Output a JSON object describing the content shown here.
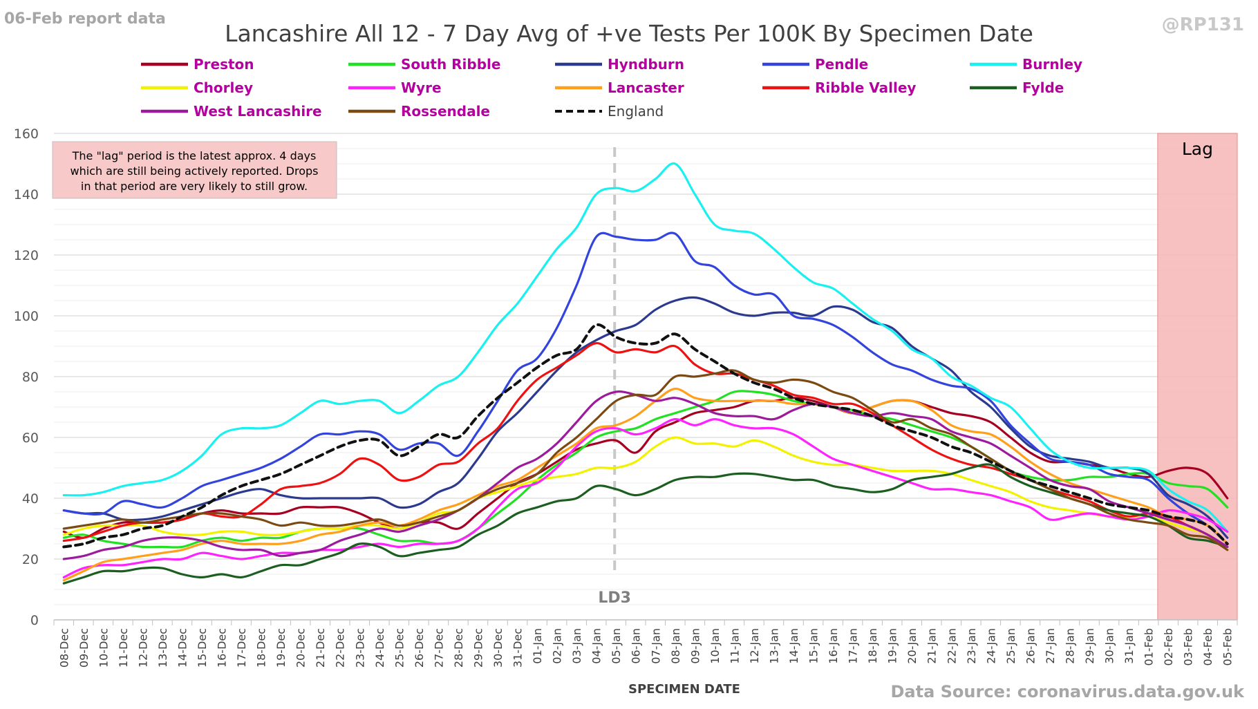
{
  "header": {
    "report_label": "06-Feb report data",
    "handle": "@RP131",
    "title": "Lancashire All 12 - 7 Day Avg of +ve Tests Per 100K By Specimen Date",
    "source": "Data Source: coronavirus.data.gov.uk"
  },
  "note": {
    "lines": [
      "The \"lag\" period is the latest approx. 4 days",
      "which are still being actively reported.  Drops",
      "in that period are very likely to still grow."
    ]
  },
  "lag_label": "Lag",
  "lockdown_label": "LD3",
  "colors": {
    "legend_text": "#b4009e",
    "england_text": "#404040",
    "lag_fill": "#f6b6b6",
    "note_fill": "#f8c9c9",
    "grid": "#d9d9d9"
  },
  "chart_data": {
    "type": "line",
    "title": "Lancashire All 12 - 7 Day Avg of +ve Tests Per 100K By Specimen Date",
    "xlabel": "SPECIMEN DATE",
    "ylabel": "",
    "ylim": [
      0,
      160
    ],
    "yticks": [
      0,
      20,
      40,
      60,
      80,
      100,
      120,
      140,
      160
    ],
    "grid": true,
    "legend_position": "top",
    "x": [
      "08-Dec",
      "09-Dec",
      "10-Dec",
      "11-Dec",
      "12-Dec",
      "13-Dec",
      "14-Dec",
      "15-Dec",
      "16-Dec",
      "17-Dec",
      "18-Dec",
      "19-Dec",
      "20-Dec",
      "21-Dec",
      "22-Dec",
      "23-Dec",
      "24-Dec",
      "25-Dec",
      "26-Dec",
      "27-Dec",
      "28-Dec",
      "29-Dec",
      "30-Dec",
      "31-Dec",
      "01-Jan",
      "02-Jan",
      "03-Jan",
      "04-Jan",
      "05-Jan",
      "06-Jan",
      "07-Jan",
      "08-Jan",
      "09-Jan",
      "10-Jan",
      "11-Jan",
      "12-Jan",
      "13-Jan",
      "14-Jan",
      "15-Jan",
      "16-Jan",
      "17-Jan",
      "18-Jan",
      "19-Jan",
      "20-Jan",
      "21-Jan",
      "22-Jan",
      "23-Jan",
      "24-Jan",
      "25-Jan",
      "26-Jan",
      "27-Jan",
      "28-Jan",
      "29-Jan",
      "30-Jan",
      "31-Jan",
      "01-Feb",
      "02-Feb",
      "03-Feb",
      "04-Feb",
      "05-Feb"
    ],
    "lag_start": "02-Feb",
    "lag_end": "05-Feb",
    "lockdown_date": "05-Jan",
    "series": [
      {
        "name": "Preston",
        "color": "#a50021",
        "dashed": false,
        "values": [
          29,
          27,
          30,
          32,
          32,
          32,
          33,
          35,
          36,
          35,
          35,
          35,
          37,
          37,
          37,
          35,
          32,
          30,
          32,
          32,
          30,
          35,
          40,
          45,
          48,
          52,
          56,
          58,
          59,
          55,
          62,
          65,
          68,
          69,
          70,
          72,
          72,
          73,
          72,
          70,
          68,
          70,
          72,
          72,
          70,
          68,
          67,
          65,
          60,
          55,
          52,
          52,
          51,
          50,
          48,
          47,
          49,
          50,
          48,
          40
        ]
      },
      {
        "name": "South Ribble",
        "color": "#22e022",
        "dashed": false,
        "values": [
          27,
          28,
          26,
          25,
          24,
          24,
          24,
          26,
          27,
          26,
          27,
          27,
          29,
          30,
          30,
          30,
          28,
          26,
          26,
          25,
          26,
          30,
          35,
          40,
          46,
          51,
          55,
          60,
          62,
          63,
          66,
          68,
          70,
          72,
          75,
          75,
          74,
          72,
          71,
          70,
          69,
          67,
          66,
          64,
          62,
          60,
          57,
          53,
          49,
          47,
          46,
          46,
          47,
          47,
          48,
          48,
          45,
          44,
          43,
          37
        ]
      },
      {
        "name": "Hyndburn",
        "color": "#2b3a8f",
        "dashed": false,
        "values": [
          36,
          35,
          35,
          33,
          33,
          34,
          36,
          38,
          40,
          42,
          43,
          41,
          40,
          40,
          40,
          40,
          40,
          37,
          38,
          42,
          45,
          53,
          62,
          68,
          75,
          82,
          88,
          92,
          95,
          97,
          102,
          105,
          106,
          104,
          101,
          100,
          101,
          101,
          100,
          103,
          102,
          98,
          96,
          90,
          86,
          82,
          75,
          70,
          63,
          57,
          54,
          53,
          52,
          50,
          50,
          48,
          41,
          38,
          34,
          27
        ]
      },
      {
        "name": "Pendle",
        "color": "#3344dd",
        "dashed": false,
        "values": [
          36,
          35,
          35,
          39,
          38,
          37,
          40,
          44,
          46,
          48,
          50,
          53,
          57,
          61,
          61,
          62,
          61,
          56,
          58,
          58,
          54,
          62,
          72,
          82,
          86,
          96,
          110,
          126,
          126,
          125,
          125,
          127,
          118,
          116,
          110,
          107,
          107,
          100,
          99,
          97,
          93,
          88,
          84,
          82,
          79,
          77,
          76,
          72,
          64,
          58,
          53,
          52,
          51,
          48,
          47,
          46,
          40,
          35,
          31,
          25
        ]
      },
      {
        "name": "Burnley",
        "color": "#19f0f0",
        "dashed": false,
        "values": [
          41,
          41,
          42,
          44,
          45,
          46,
          49,
          54,
          61,
          63,
          63,
          64,
          68,
          72,
          71,
          72,
          72,
          68,
          72,
          77,
          80,
          88,
          97,
          104,
          113,
          122,
          129,
          140,
          142,
          141,
          145,
          150,
          140,
          130,
          128,
          127,
          122,
          116,
          111,
          109,
          104,
          99,
          95,
          89,
          86,
          80,
          77,
          73,
          70,
          63,
          56,
          52,
          50,
          50,
          50,
          49,
          43,
          39,
          36,
          29
        ]
      },
      {
        "name": "Chorley",
        "color": "#f2f200",
        "dashed": false,
        "values": [
          28,
          30,
          31,
          31,
          31,
          29,
          28,
          28,
          29,
          29,
          28,
          28,
          29,
          30,
          30,
          31,
          31,
          30,
          32,
          35,
          36,
          40,
          42,
          44,
          46,
          47,
          48,
          50,
          50,
          52,
          57,
          60,
          58,
          58,
          57,
          59,
          57,
          54,
          52,
          51,
          51,
          50,
          49,
          49,
          49,
          48,
          46,
          44,
          42,
          39,
          37,
          36,
          35,
          34,
          34,
          34,
          32,
          30,
          28,
          23
        ]
      },
      {
        "name": "Wyre",
        "color": "#ff22ff",
        "dashed": false,
        "values": [
          14,
          17,
          18,
          18,
          19,
          20,
          20,
          22,
          21,
          20,
          21,
          22,
          22,
          23,
          23,
          24,
          25,
          24,
          25,
          25,
          26,
          30,
          37,
          43,
          45,
          50,
          57,
          62,
          63,
          61,
          63,
          66,
          64,
          66,
          64,
          63,
          63,
          61,
          57,
          53,
          51,
          49,
          47,
          45,
          43,
          43,
          42,
          41,
          39,
          37,
          33,
          34,
          35,
          34,
          33,
          34,
          36,
          35,
          33,
          29
        ]
      },
      {
        "name": "Lancaster",
        "color": "#ff9f1a",
        "dashed": false,
        "values": [
          13,
          16,
          19,
          20,
          21,
          22,
          23,
          25,
          26,
          25,
          25,
          25,
          26,
          28,
          29,
          31,
          32,
          31,
          33,
          36,
          38,
          41,
          44,
          46,
          50,
          54,
          58,
          63,
          64,
          67,
          72,
          76,
          73,
          72,
          72,
          72,
          72,
          71,
          71,
          70,
          68,
          70,
          72,
          72,
          69,
          64,
          62,
          61,
          57,
          52,
          48,
          45,
          43,
          41,
          39,
          37,
          34,
          33,
          31,
          25
        ]
      },
      {
        "name": "Ribble Valley",
        "color": "#ee1111",
        "dashed": false,
        "values": [
          26,
          27,
          29,
          31,
          32,
          32,
          33,
          35,
          34,
          34,
          38,
          43,
          44,
          45,
          48,
          53,
          51,
          46,
          47,
          51,
          52,
          58,
          63,
          72,
          79,
          83,
          87,
          91,
          88,
          89,
          88,
          90,
          84,
          81,
          81,
          79,
          77,
          74,
          73,
          71,
          71,
          68,
          64,
          60,
          56,
          53,
          51,
          50,
          48,
          46,
          43,
          41,
          39,
          36,
          34,
          35,
          34,
          31,
          28,
          24
        ]
      },
      {
        "name": "Fylde",
        "color": "#1b5e20",
        "dashed": false,
        "values": [
          12,
          14,
          16,
          16,
          17,
          17,
          15,
          14,
          15,
          14,
          16,
          18,
          18,
          20,
          22,
          25,
          24,
          21,
          22,
          23,
          24,
          28,
          31,
          35,
          37,
          39,
          40,
          44,
          43,
          41,
          43,
          46,
          47,
          47,
          48,
          48,
          47,
          46,
          46,
          44,
          43,
          42,
          43,
          46,
          47,
          48,
          50,
          51,
          47,
          44,
          42,
          40,
          38,
          36,
          35,
          34,
          31,
          27,
          26,
          24
        ]
      },
      {
        "name": "West Lancashire",
        "color": "#9c1a9c",
        "dashed": false,
        "values": [
          20,
          21,
          23,
          24,
          26,
          27,
          27,
          26,
          24,
          23,
          23,
          21,
          22,
          23,
          26,
          28,
          30,
          29,
          31,
          33,
          36,
          40,
          45,
          50,
          53,
          58,
          65,
          72,
          75,
          74,
          72,
          73,
          71,
          68,
          67,
          67,
          66,
          69,
          71,
          70,
          68,
          67,
          68,
          67,
          66,
          62,
          60,
          58,
          54,
          50,
          46,
          44,
          43,
          39,
          37,
          35,
          33,
          31,
          28,
          24
        ]
      },
      {
        "name": "Rossendale",
        "color": "#7b4a12",
        "dashed": false,
        "values": [
          30,
          31,
          32,
          33,
          32,
          33,
          34,
          35,
          35,
          34,
          33,
          31,
          32,
          31,
          31,
          32,
          33,
          31,
          32,
          34,
          36,
          40,
          43,
          45,
          48,
          55,
          60,
          66,
          72,
          74,
          74,
          80,
          80,
          81,
          82,
          79,
          78,
          79,
          78,
          75,
          73,
          69,
          65,
          66,
          63,
          61,
          57,
          53,
          49,
          46,
          43,
          40,
          38,
          35,
          33,
          32,
          31,
          28,
          27,
          23
        ]
      },
      {
        "name": "England",
        "color": "#111111",
        "dashed": true,
        "values": [
          24,
          25,
          27,
          28,
          30,
          31,
          34,
          37,
          41,
          44,
          46,
          48,
          51,
          54,
          57,
          59,
          59,
          54,
          57,
          61,
          60,
          67,
          73,
          78,
          83,
          87,
          89,
          97,
          93,
          91,
          91,
          94,
          89,
          85,
          81,
          78,
          76,
          73,
          71,
          70,
          69,
          67,
          64,
          62,
          60,
          57,
          55,
          52,
          49,
          46,
          44,
          42,
          40,
          38,
          37,
          36,
          34,
          33,
          31,
          25
        ]
      }
    ]
  }
}
